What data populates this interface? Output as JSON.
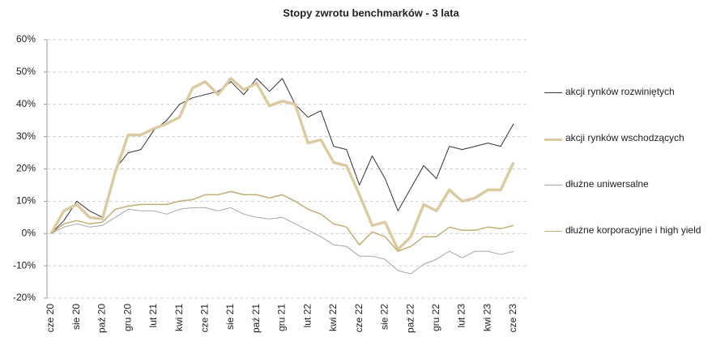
{
  "chart_data": {
    "type": "line",
    "title": "Stopy zwrotu benchmarków - 3 lata",
    "categories": [
      "cze 20",
      null,
      "sie 20",
      null,
      "paź 20",
      null,
      "gru 20",
      null,
      "lut 21",
      null,
      "kwi 21",
      null,
      "cze 21",
      null,
      "sie 21",
      null,
      "paź 21",
      null,
      "gru 21",
      null,
      "lut 22",
      null,
      "kwi 22",
      null,
      "cze 22",
      null,
      "sie 22",
      null,
      "paź 22",
      null,
      "gru 22",
      null,
      "lut 23",
      null,
      "kwi 23",
      null,
      "cze 23"
    ],
    "series": [
      {
        "name": "akcji rynków rozwiniętych",
        "color": "#333333",
        "width": 1,
        "values": [
          0,
          4,
          10,
          7,
          5,
          20,
          25,
          26,
          32,
          35,
          40,
          42,
          43,
          44,
          47,
          43,
          48,
          44,
          48,
          40,
          36,
          38,
          27,
          26,
          15,
          24,
          17,
          7,
          14,
          21,
          17,
          27,
          26,
          27,
          28,
          27,
          34
        ]
      },
      {
        "name": "akcji rynków wschodzących",
        "color": "#dccaa2",
        "width": 3.5,
        "values": [
          0,
          7,
          9,
          5,
          4.5,
          19,
          30.5,
          30.5,
          32.5,
          34,
          36,
          45,
          47,
          43,
          48,
          44.5,
          46.5,
          39.5,
          41,
          40,
          28,
          29,
          22,
          21,
          12,
          2.5,
          3.5,
          -5,
          -1,
          9,
          7,
          13.5,
          10,
          11,
          13.5,
          13.5,
          22
        ]
      },
      {
        "name": "dłużne uniwersalne",
        "color": "#a6a6a6",
        "width": 1,
        "values": [
          0,
          2,
          3,
          2,
          2.5,
          5,
          7.5,
          7,
          7,
          6,
          7.5,
          8,
          8,
          7,
          8,
          6,
          5,
          4.5,
          5,
          3,
          1,
          -1,
          -3.5,
          -4,
          -7,
          -7,
          -8,
          -11.5,
          -12.5,
          -9.5,
          -8,
          -5.5,
          -7.5,
          -5.5,
          -5.5,
          -6.5,
          -5.5
        ]
      },
      {
        "name": "dłużne korporacyjne i high yield",
        "color": "#c2ae74",
        "width": 1.5,
        "values": [
          0,
          3,
          4,
          3,
          3.5,
          7.5,
          8.5,
          9,
          9,
          9,
          10,
          10.5,
          12,
          12,
          13,
          12,
          12,
          11,
          12,
          10,
          7.5,
          6,
          3,
          2,
          -3.5,
          0.5,
          -1,
          -5.5,
          -4,
          -1,
          -1,
          2,
          1,
          1,
          2,
          1.5,
          2.5
        ]
      }
    ],
    "ylim": [
      -20,
      60
    ],
    "yticks": [
      {
        "value": -20,
        "label": "-20%"
      },
      {
        "value": -10,
        "label": "-10%"
      },
      {
        "value": 0,
        "label": "0%"
      },
      {
        "value": 10,
        "label": "10%"
      },
      {
        "value": 20,
        "label": "20%"
      },
      {
        "value": 30,
        "label": "30%"
      },
      {
        "value": 40,
        "label": "40%"
      },
      {
        "value": 50,
        "label": "50%"
      },
      {
        "value": 60,
        "label": "60%"
      }
    ],
    "grid": true,
    "legend": "right"
  }
}
